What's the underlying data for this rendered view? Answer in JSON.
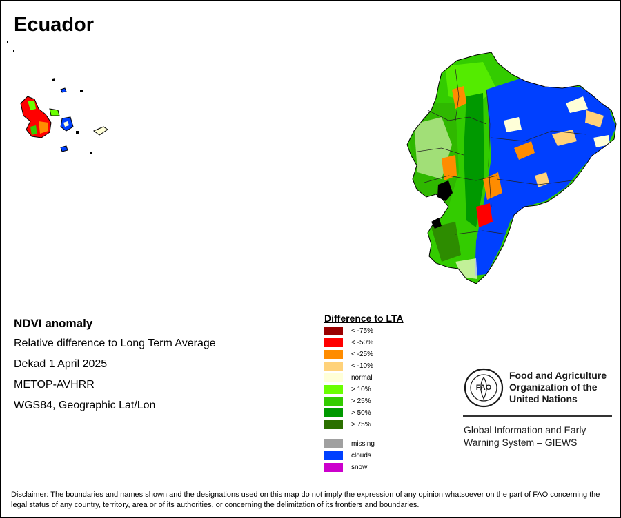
{
  "title": "Ecuador",
  "info": [
    "NDVI anomaly",
    "Relative difference to Long Term Average",
    "Dekad 1 April 2025",
    "METOP-AVHRR",
    "WGS84, Geographic Lat/Lon"
  ],
  "legend": {
    "title": "Difference to LTA",
    "items": [
      {
        "label": "< -75%",
        "color": "#9b0000"
      },
      {
        "label": "< -50%",
        "color": "#ff0000"
      },
      {
        "label": "< -25%",
        "color": "#ff8c00"
      },
      {
        "label": "< -10%",
        "color": "#ffd27a"
      },
      {
        "label": "normal",
        "color": "#ffffd8"
      },
      {
        "label": "> 10%",
        "color": "#6aff00"
      },
      {
        "label": "> 25%",
        "color": "#33cc00"
      },
      {
        "label": "> 50%",
        "color": "#009900"
      },
      {
        "label": "> 75%",
        "color": "#2b7000"
      },
      {
        "label": "missing",
        "color": "#a0a0a0"
      },
      {
        "label": "clouds",
        "color": "#0040ff"
      },
      {
        "label": "snow",
        "color": "#cc00cc"
      }
    ]
  },
  "organization": {
    "logo_text": "FAO",
    "name_lines": [
      "Food and Agriculture",
      "Organization of the",
      "United Nations"
    ],
    "system_lines": [
      "Global Information and Early",
      "Warning System – GIEWS"
    ]
  },
  "disclaimer": "Disclaimer: The boundaries and names shown and the designations used on this map do not imply the expression of any opinion whatsoever on the part of FAO concerning the legal status of any country, territory, area or of its authorities, or concerning the delimitation of its frontiers and boundaries."
}
